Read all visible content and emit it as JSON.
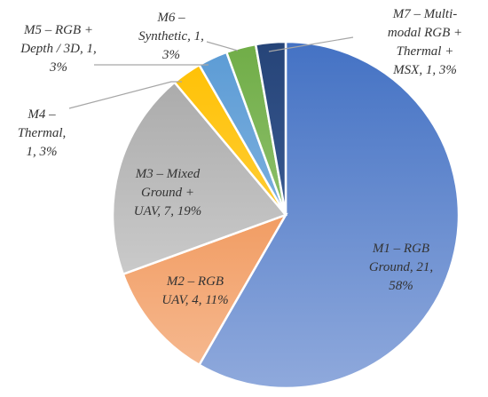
{
  "chart_data": {
    "type": "pie",
    "title": "",
    "legend": "none",
    "slices": [
      {
        "id": "m1",
        "label_lines": [
          "M1 – RGB",
          "Ground, 21,",
          "58%"
        ],
        "value": 21,
        "percent": 58,
        "color_light": "#8fa9dc",
        "color_dark": "#4472c4"
      },
      {
        "id": "m2",
        "label_lines": [
          "M2 – RGB",
          "UAV, 4, 11%"
        ],
        "value": 4,
        "percent": 11,
        "color_light": "#f6bc95",
        "color_dark": "#ed7d31"
      },
      {
        "id": "m3",
        "label_lines": [
          "M3 – Mixed",
          "Ground +",
          "UAV, 7, 19%"
        ],
        "value": 7,
        "percent": 19,
        "color_light": "#dcdcdc",
        "color_dark": "#a5a5a5"
      },
      {
        "id": "m4",
        "label_lines": [
          "M4 –",
          "Thermal,",
          "1, 3%"
        ],
        "value": 1,
        "percent": 3,
        "color_light": "#ffd966",
        "color_dark": "#ffc000"
      },
      {
        "id": "m5",
        "label_lines": [
          "M5 – RGB +",
          "Depth / 3D, 1,",
          "3%"
        ],
        "value": 1,
        "percent": 3,
        "color_light": "#9dc3e6",
        "color_dark": "#5b9bd5"
      },
      {
        "id": "m6",
        "label_lines": [
          "M6 –",
          "Synthetic, 1,",
          "3%"
        ],
        "value": 1,
        "percent": 3,
        "color_light": "#a9d18e",
        "color_dark": "#70ad47"
      },
      {
        "id": "m7",
        "label_lines": [
          "M7 – Multi-",
          "modal RGB +",
          "Thermal +",
          "MSX, 1, 3%"
        ],
        "value": 1,
        "percent": 3,
        "color_light": "#4a6da8",
        "color_dark": "#264478"
      }
    ]
  }
}
